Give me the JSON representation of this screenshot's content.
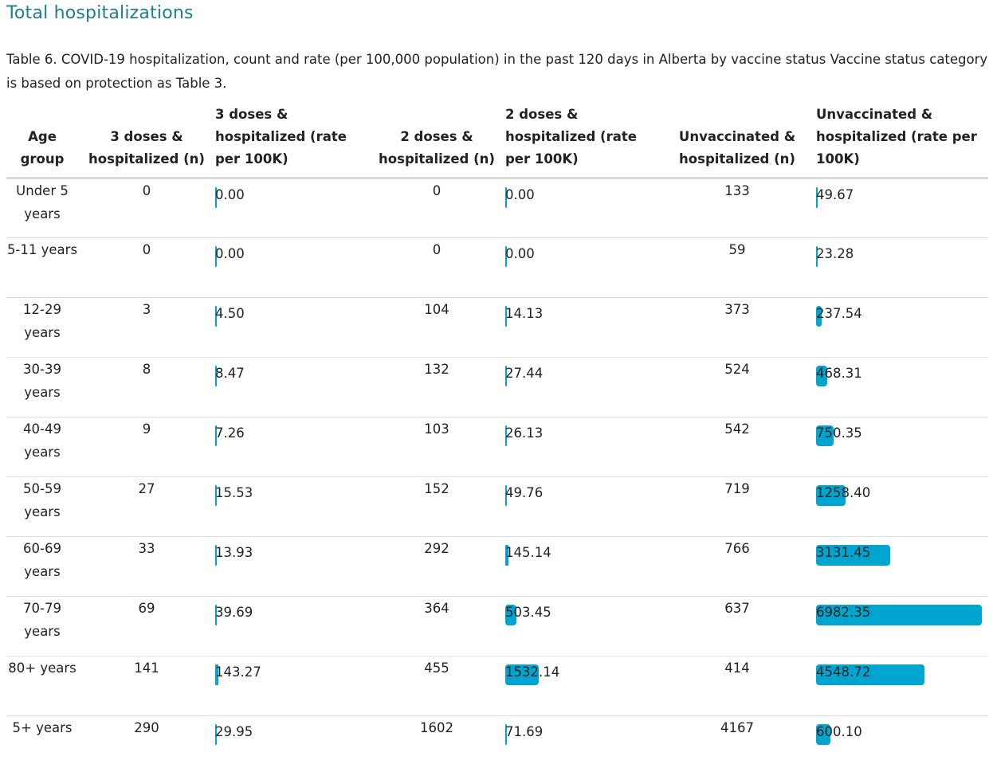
{
  "page": {
    "title": "Total hospitalizations",
    "caption": "Table 6. COVID-19 hospitalization, count and rate (per 100,000 population) in the past 120 days in Alberta by vaccine status Vaccine status category is based on protection as Table 3."
  },
  "colors": {
    "title": "#1a7f96",
    "bar": "#00a5cf"
  },
  "table": {
    "headers": {
      "age_group": "Age group",
      "three_n": "3 doses & hospitalized (n)",
      "three_rate": "3 doses & hospitalized (rate per 100K)",
      "two_n": "2 doses & hospitalized (n)",
      "two_rate": "2 doses & hospitalized (rate per 100K)",
      "unvax_n": "Unvaccinated & hospitalized (n)",
      "unvax_rate": "Unvaccinated & hospitalized (rate per 100K)"
    },
    "bar_max": 6982.35,
    "rows": [
      {
        "age": "Under 5 years",
        "three_n": "0",
        "three_rate": "0.00",
        "two_n": "0",
        "two_rate": "0.00",
        "unvax_n": "133",
        "unvax_rate": "49.67"
      },
      {
        "age": "5-11 years",
        "three_n": "0",
        "three_rate": "0.00",
        "two_n": "0",
        "two_rate": "0.00",
        "unvax_n": "59",
        "unvax_rate": "23.28"
      },
      {
        "age": "12-29 years",
        "three_n": "3",
        "three_rate": "4.50",
        "two_n": "104",
        "two_rate": "14.13",
        "unvax_n": "373",
        "unvax_rate": "237.54"
      },
      {
        "age": "30-39 years",
        "three_n": "8",
        "three_rate": "8.47",
        "two_n": "132",
        "two_rate": "27.44",
        "unvax_n": "524",
        "unvax_rate": "468.31"
      },
      {
        "age": "40-49 years",
        "three_n": "9",
        "three_rate": "7.26",
        "two_n": "103",
        "two_rate": "26.13",
        "unvax_n": "542",
        "unvax_rate": "750.35"
      },
      {
        "age": "50-59 years",
        "three_n": "27",
        "three_rate": "15.53",
        "two_n": "152",
        "two_rate": "49.76",
        "unvax_n": "719",
        "unvax_rate": "1258.40"
      },
      {
        "age": "60-69 years",
        "three_n": "33",
        "three_rate": "13.93",
        "two_n": "292",
        "two_rate": "145.14",
        "unvax_n": "766",
        "unvax_rate": "3131.45"
      },
      {
        "age": "70-79 years",
        "three_n": "69",
        "three_rate": "39.69",
        "two_n": "364",
        "two_rate": "503.45",
        "unvax_n": "637",
        "unvax_rate": "6982.35"
      },
      {
        "age": "80+ years",
        "three_n": "141",
        "three_rate": "143.27",
        "two_n": "455",
        "two_rate": "1532.14",
        "unvax_n": "414",
        "unvax_rate": "4548.72"
      },
      {
        "age": "5+ years",
        "three_n": "290",
        "three_rate": "29.95",
        "two_n": "1602",
        "two_rate": "71.69",
        "unvax_n": "4167",
        "unvax_rate": "600.10"
      }
    ]
  }
}
